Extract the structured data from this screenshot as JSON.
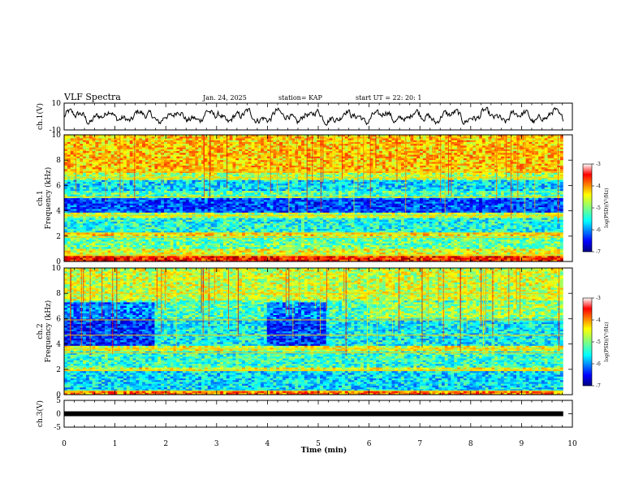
{
  "header": {
    "title": "VLF Spectra",
    "date": "Jan. 24, 2025",
    "station": "station= KAP",
    "start": "start  UT  =   22: 20: 1"
  },
  "chart_data": [
    {
      "type": "line",
      "name": "ch1-waveform",
      "ylabel": "ch.1(V)",
      "ylim": [
        -10,
        10
      ],
      "yticks": [
        "10",
        "-10"
      ],
      "xlim": [
        0,
        10
      ],
      "x_end": 9.82,
      "grid": false,
      "description_of_signal": "noisy oscillating waveform, amplitude about -7 to 8 V"
    },
    {
      "type": "heatmap",
      "name": "ch1-spectrogram",
      "ylabel": "ch.1\nFrequency (kHz)",
      "ylim": [
        0,
        10
      ],
      "yticks": [
        "0",
        "2",
        "4",
        "6",
        "8",
        "10"
      ],
      "xlim": [
        0,
        10
      ],
      "x_end": 9.82,
      "colorbar": {
        "label": "log(PSD)(V²/Hz)",
        "ticks": [
          "-3",
          "-4",
          "-5",
          "-6",
          "-7"
        ],
        "range": [
          -7,
          -3
        ]
      },
      "bands_khz": [
        {
          "f0": 0.0,
          "f1": 0.4,
          "level": -3.6
        },
        {
          "f0": 0.4,
          "f1": 1.0,
          "level": -4.6
        },
        {
          "f0": 1.0,
          "f1": 2.0,
          "level": -5.1
        },
        {
          "f0": 2.0,
          "f1": 2.3,
          "level": -4.4
        },
        {
          "f0": 2.3,
          "f1": 3.4,
          "level": -5.4
        },
        {
          "f0": 3.4,
          "f1": 3.8,
          "level": -4.8
        },
        {
          "f0": 3.8,
          "f1": 5.0,
          "level": -6.2
        },
        {
          "f0": 5.0,
          "f1": 5.6,
          "level": -5.2
        },
        {
          "f0": 5.6,
          "f1": 6.4,
          "level": -5.6
        },
        {
          "f0": 6.4,
          "f1": 7.0,
          "level": -4.8
        },
        {
          "f0": 7.0,
          "f1": 10.0,
          "level": -4.3
        }
      ]
    },
    {
      "type": "heatmap",
      "name": "ch2-spectrogram",
      "ylabel": "ch.2\nFrequency (kHz)",
      "ylim": [
        0,
        10
      ],
      "yticks": [
        "0",
        "2",
        "4",
        "6",
        "8",
        "10"
      ],
      "xlim": [
        0,
        10
      ],
      "x_end": 9.82,
      "colorbar": {
        "label": "log(PSD)(V²/Hz)",
        "ticks": [
          "-3",
          "-4",
          "-5",
          "-6",
          "-7"
        ],
        "range": [
          -7,
          -3
        ]
      },
      "bands_khz": [
        {
          "f0": 0.0,
          "f1": 0.3,
          "level": -4.0
        },
        {
          "f0": 0.3,
          "f1": 1.8,
          "level": -5.6
        },
        {
          "f0": 1.8,
          "f1": 2.2,
          "level": -4.6
        },
        {
          "f0": 2.2,
          "f1": 3.4,
          "level": -5.3
        },
        {
          "f0": 3.4,
          "f1": 3.8,
          "level": -4.6
        },
        {
          "f0": 3.8,
          "f1": 6.0,
          "level": -5.5
        },
        {
          "f0": 6.0,
          "f1": 7.5,
          "level": -5.2
        },
        {
          "f0": 7.5,
          "f1": 10.0,
          "level": -4.7
        }
      ]
    },
    {
      "type": "line",
      "name": "ch3-waveform",
      "ylabel": "ch.3(V)",
      "ylim": [
        -5,
        5
      ],
      "yticks": [
        "5",
        "0",
        "-5"
      ],
      "xlim": [
        0,
        10
      ],
      "x_end": 9.82,
      "signal_level_v": 0
    }
  ],
  "xaxis": {
    "label": "Time (min)",
    "ticks": [
      "0",
      "1",
      "2",
      "3",
      "4",
      "5",
      "6",
      "7",
      "8",
      "9",
      "10"
    ]
  },
  "colors": {
    "jet": [
      "#00007f",
      "#0000ff",
      "#007fff",
      "#00ffff",
      "#7fff7f",
      "#ffff00",
      "#ff7f00",
      "#ff0000",
      "#7f0000"
    ]
  }
}
